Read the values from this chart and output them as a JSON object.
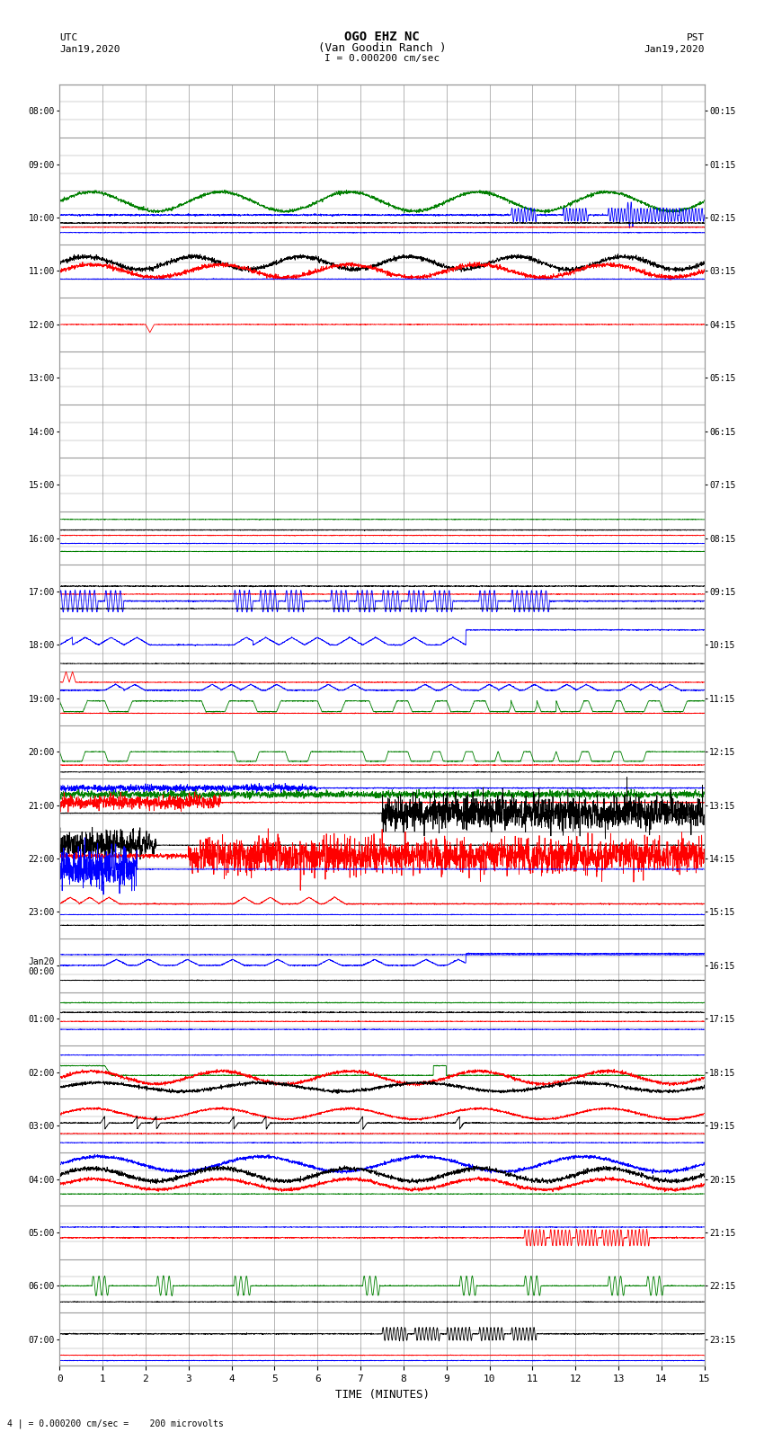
{
  "title_line1": "OGO EHZ NC",
  "title_line2": "(Van Goodin Ranch )",
  "title_line3": "I = 0.000200 cm/sec",
  "left_top_label": "UTC\nJan19,2020",
  "right_top_label": "PST\nJan19,2020",
  "xlabel": "TIME (MINUTES)",
  "bottom_label": "4 | = 0.000200 cm/sec =    200 microvolts",
  "utc_times": [
    "08:00",
    "09:00",
    "10:00",
    "11:00",
    "12:00",
    "13:00",
    "14:00",
    "15:00",
    "16:00",
    "17:00",
    "18:00",
    "19:00",
    "20:00",
    "21:00",
    "22:00",
    "23:00",
    "Jan20\n00:00",
    "01:00",
    "02:00",
    "03:00",
    "04:00",
    "05:00",
    "06:00",
    "07:00"
  ],
  "pst_times": [
    "00:15",
    "01:15",
    "02:15",
    "03:15",
    "04:15",
    "05:15",
    "06:15",
    "07:15",
    "08:15",
    "09:15",
    "10:15",
    "11:15",
    "12:15",
    "13:15",
    "14:15",
    "15:15",
    "16:15",
    "17:15",
    "18:15",
    "19:15",
    "20:15",
    "21:15",
    "22:15",
    "23:15"
  ],
  "n_rows": 24,
  "minutes": 15,
  "bg_color": "#ffffff",
  "grid_color": "#999999",
  "line_colors": {
    "blue": "#0000ff",
    "red": "#ff0000",
    "green": "#008000",
    "black": "#000000"
  }
}
